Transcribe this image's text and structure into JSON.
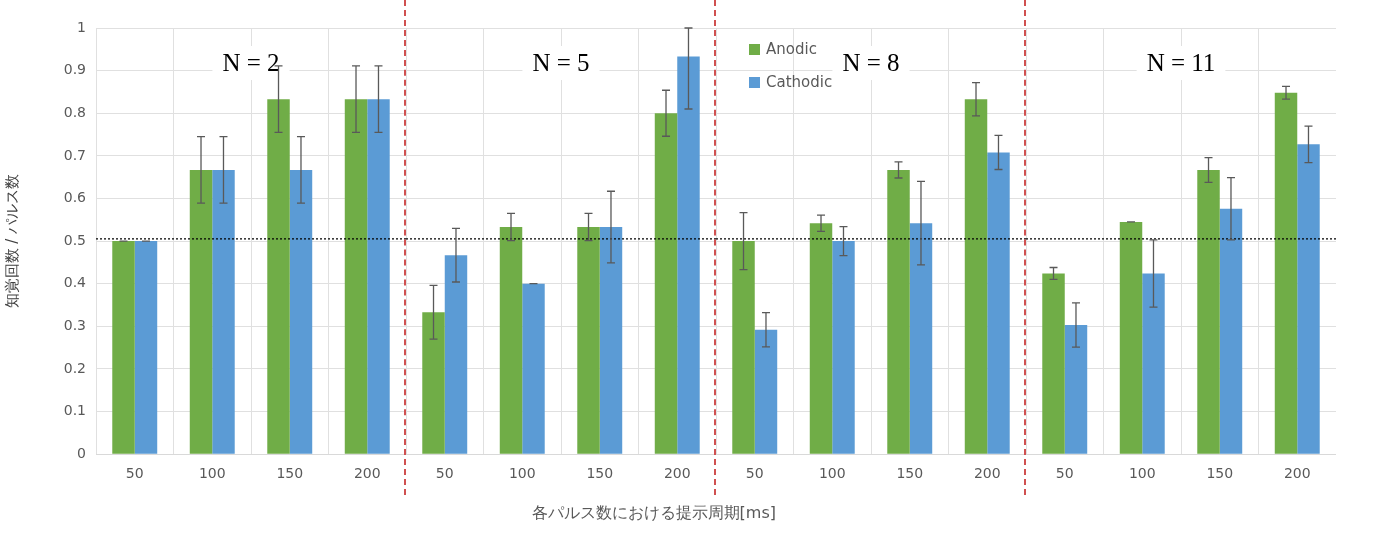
{
  "chart_data": [
    {
      "type": "bar",
      "title": "N = 2",
      "ylabel": "知覚回数 / パルス数",
      "categories": [
        "50",
        "100",
        "150",
        "200"
      ],
      "ylim": [
        0,
        1
      ],
      "yticks": [
        0,
        0.1,
        0.2,
        0.3,
        0.4,
        0.5,
        0.6,
        0.7,
        0.8,
        0.9,
        1
      ],
      "grid": true,
      "series": [
        {
          "color": "#70ad47",
          "values": [
            0.5,
            0.667,
            0.833,
            0.833
          ],
          "errors": [
            0,
            0.078,
            0.078,
            0.078
          ]
        },
        {
          "color": "#5b9bd5",
          "values": [
            0.5,
            0.667,
            0.667,
            0.833
          ],
          "errors": [
            0,
            0.078,
            0.078,
            0.078
          ]
        }
      ],
      "ref_lines": [
        {
          "axis": "y",
          "value": 0.505,
          "color": "#000000",
          "line_style": "dotted"
        }
      ]
    },
    {
      "type": "bar",
      "title": "N = 5",
      "xlabel": "各パルス数における提示周期[ms]",
      "categories": [
        "50",
        "100",
        "150",
        "200"
      ],
      "ylim": [
        0,
        1
      ],
      "yticks": [
        0,
        0.1,
        0.2,
        0.3,
        0.4,
        0.5,
        0.6,
        0.7,
        0.8,
        0.9,
        1
      ],
      "grid": true,
      "tick_labels": "x",
      "series": [
        {
          "color": "#70ad47",
          "values": [
            0.333,
            0.533,
            0.533,
            0.8
          ],
          "errors": [
            0.063,
            0.032,
            0.032,
            0.054
          ]
        },
        {
          "color": "#5b9bd5",
          "values": [
            0.467,
            0.4,
            0.533,
            0.933
          ],
          "errors": [
            0.063,
            0,
            0.084,
            [
              0.81,
              1
            ]
          ]
        }
      ],
      "ref_lines": [
        {
          "axis": "y",
          "value": 0.505,
          "color": "#000000",
          "line_style": "dotted"
        }
      ]
    },
    {
      "type": "bar",
      "title": "N = 8",
      "categories": [
        "50",
        "100",
        "150",
        "200"
      ],
      "ylim": [
        0,
        1
      ],
      "yticks": [
        0,
        0.1,
        0.2,
        0.3,
        0.4,
        0.5,
        0.6,
        0.7,
        0.8,
        0.9,
        1
      ],
      "grid": true,
      "tick_labels": "x",
      "legend": "top left",
      "series": [
        {
          "name": "Anodic",
          "color": "#70ad47",
          "values": [
            0.5,
            0.542,
            0.667,
            0.833
          ],
          "errors": [
            0.067,
            0.019,
            0.019,
            0.039
          ]
        },
        {
          "name": "Cathodic",
          "color": "#5b9bd5",
          "values": [
            0.292,
            0.5,
            0.542,
            0.708
          ],
          "errors": [
            0.04,
            0.034,
            0.098,
            0.04
          ]
        }
      ],
      "ref_lines": [
        {
          "axis": "y",
          "value": 0.505,
          "color": "#000000",
          "line_style": "dotted"
        }
      ]
    },
    {
      "type": "bar",
      "title": "N = 11",
      "categories": [
        "50",
        "100",
        "150",
        "200"
      ],
      "ylim": [
        0,
        1
      ],
      "yticks": [
        0,
        0.1,
        0.2,
        0.3,
        0.4,
        0.5,
        0.6,
        0.7,
        0.8,
        0.9,
        1
      ],
      "grid": true,
      "tick_labels": "x",
      "series": [
        {
          "color": "#70ad47",
          "values": [
            0.424,
            0.545,
            0.667,
            0.848
          ],
          "errors": [
            0.014,
            0,
            0.029,
            0.015
          ]
        },
        {
          "color": "#5b9bd5",
          "values": [
            0.303,
            0.424,
            0.576,
            0.727
          ],
          "errors": [
            0.052,
            0.079,
            0.073,
            0.043
          ]
        }
      ],
      "ref_lines": [
        {
          "axis": "y",
          "value": 0.505,
          "color": "#000000",
          "line_style": "dotted"
        }
      ]
    }
  ]
}
